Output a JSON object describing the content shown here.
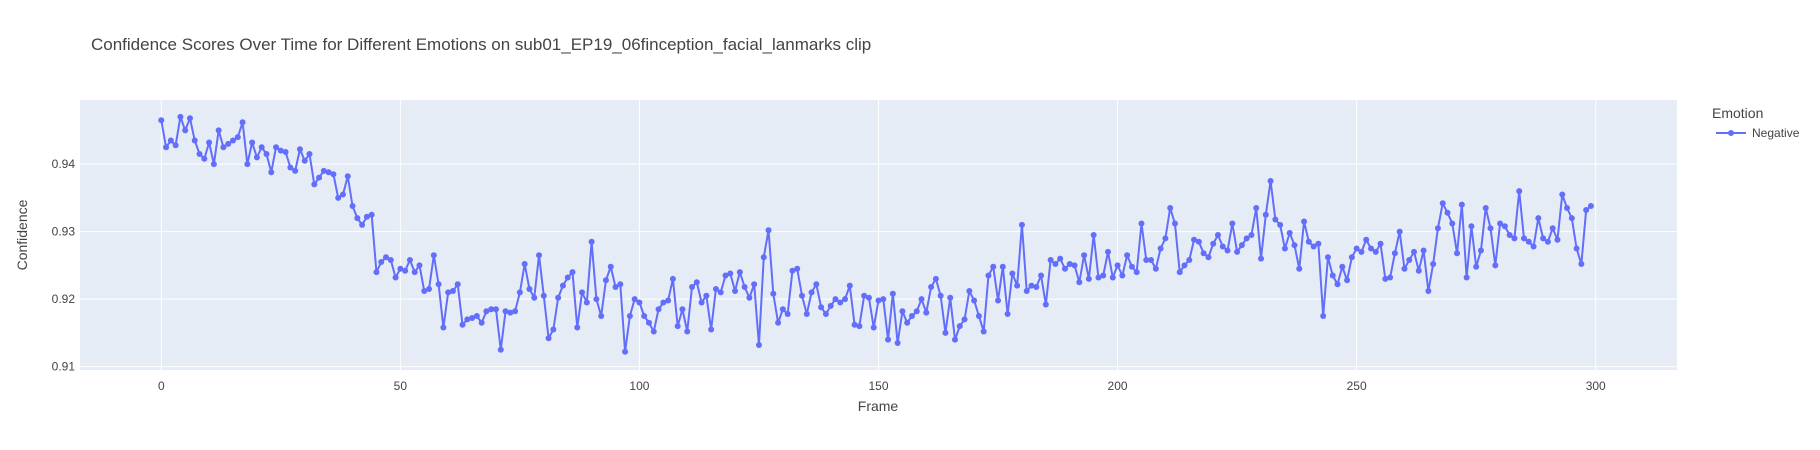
{
  "chart_data": {
    "type": "line",
    "title": "Confidence Scores Over Time for Different Emotions on sub01_EP19_06finception_facial_lanmarks clip",
    "xlabel": "Frame",
    "ylabel": "Confidence",
    "xlim": [
      -17,
      317
    ],
    "ylim": [
      0.9095,
      0.9495
    ],
    "xticks": [
      0,
      50,
      100,
      150,
      200,
      250,
      300
    ],
    "yticks": [
      0.91,
      0.92,
      0.93,
      0.94
    ],
    "ytick_labels": [
      "0.91",
      "0.92",
      "0.93",
      "0.94"
    ],
    "grid": true,
    "legend": {
      "title": "Emotion",
      "placement": "top-right"
    },
    "series": [
      {
        "name": "Negative",
        "color": "#636efa",
        "y": [
          0.9465,
          0.9425,
          0.9435,
          0.9428,
          0.947,
          0.945,
          0.9468,
          0.9435,
          0.9415,
          0.9408,
          0.9432,
          0.94,
          0.945,
          0.9425,
          0.943,
          0.9435,
          0.944,
          0.9462,
          0.94,
          0.9432,
          0.941,
          0.9425,
          0.9415,
          0.9388,
          0.9425,
          0.942,
          0.9418,
          0.9395,
          0.939,
          0.9422,
          0.9405,
          0.9415,
          0.937,
          0.938,
          0.939,
          0.9388,
          0.9385,
          0.935,
          0.9355,
          0.9382,
          0.9338,
          0.932,
          0.931,
          0.9322,
          0.9325,
          0.924,
          0.9255,
          0.9262,
          0.9258,
          0.9232,
          0.9245,
          0.9242,
          0.9258,
          0.924,
          0.925,
          0.9212,
          0.9215,
          0.9265,
          0.9222,
          0.9158,
          0.921,
          0.9212,
          0.9222,
          0.9162,
          0.917,
          0.9172,
          0.9175,
          0.9165,
          0.9182,
          0.9185,
          0.9185,
          0.9125,
          0.9182,
          0.918,
          0.9182,
          0.921,
          0.9252,
          0.9215,
          0.9202,
          0.9265,
          0.9205,
          0.9142,
          0.9155,
          0.9202,
          0.922,
          0.9232,
          0.924,
          0.9158,
          0.921,
          0.9195,
          0.9285,
          0.92,
          0.9175,
          0.9228,
          0.9248,
          0.9218,
          0.9222,
          0.9122,
          0.9175,
          0.92,
          0.9195,
          0.9175,
          0.9165,
          0.9152,
          0.9185,
          0.9195,
          0.9198,
          0.923,
          0.916,
          0.9185,
          0.9152,
          0.9218,
          0.9225,
          0.9195,
          0.9205,
          0.9155,
          0.9215,
          0.921,
          0.9235,
          0.9238,
          0.9212,
          0.924,
          0.9218,
          0.9202,
          0.9222,
          0.9132,
          0.9262,
          0.9302,
          0.9208,
          0.9165,
          0.9185,
          0.9178,
          0.9242,
          0.9245,
          0.9205,
          0.9178,
          0.921,
          0.9222,
          0.9188,
          0.9178,
          0.919,
          0.92,
          0.9195,
          0.92,
          0.922,
          0.9162,
          0.916,
          0.9205,
          0.9202,
          0.9158,
          0.9198,
          0.92,
          0.914,
          0.9208,
          0.9135,
          0.9182,
          0.9165,
          0.9175,
          0.9182,
          0.92,
          0.918,
          0.9218,
          0.923,
          0.9205,
          0.915,
          0.9202,
          0.914,
          0.916,
          0.917,
          0.9212,
          0.9198,
          0.9175,
          0.9152,
          0.9235,
          0.9248,
          0.9198,
          0.9248,
          0.9178,
          0.9238,
          0.922,
          0.931,
          0.9212,
          0.922,
          0.9218,
          0.9235,
          0.9192,
          0.9258,
          0.9252,
          0.926,
          0.9245,
          0.9252,
          0.925,
          0.9225,
          0.9265,
          0.923,
          0.9295,
          0.9232,
          0.9235,
          0.927,
          0.9232,
          0.925,
          0.9235,
          0.9265,
          0.9248,
          0.924,
          0.9312,
          0.9258,
          0.9258,
          0.9245,
          0.9275,
          0.929,
          0.9335,
          0.9312,
          0.924,
          0.925,
          0.9258,
          0.9288,
          0.9285,
          0.9268,
          0.9262,
          0.9282,
          0.9295,
          0.9278,
          0.9272,
          0.9312,
          0.927,
          0.928,
          0.929,
          0.9295,
          0.9335,
          0.926,
          0.9325,
          0.9375,
          0.9318,
          0.931,
          0.9275,
          0.9298,
          0.928,
          0.9245,
          0.9315,
          0.9285,
          0.9278,
          0.9282,
          0.9175,
          0.9262,
          0.9235,
          0.9222,
          0.9248,
          0.9228,
          0.9262,
          0.9275,
          0.927,
          0.9288,
          0.9275,
          0.927,
          0.9282,
          0.923,
          0.9232,
          0.9268,
          0.93,
          0.9245,
          0.9258,
          0.927,
          0.9242,
          0.9272,
          0.9212,
          0.9252,
          0.9305,
          0.9342,
          0.9328,
          0.9312,
          0.9268,
          0.934,
          0.9232,
          0.9308,
          0.9248,
          0.9272,
          0.9335,
          0.9305,
          0.925,
          0.9312,
          0.9308,
          0.9295,
          0.929,
          0.936,
          0.929,
          0.9285,
          0.9278,
          0.932,
          0.929,
          0.9285,
          0.9305,
          0.9288,
          0.9355,
          0.9335,
          0.932,
          0.9275,
          0.9252,
          0.9332,
          0.9338
        ]
      }
    ]
  }
}
